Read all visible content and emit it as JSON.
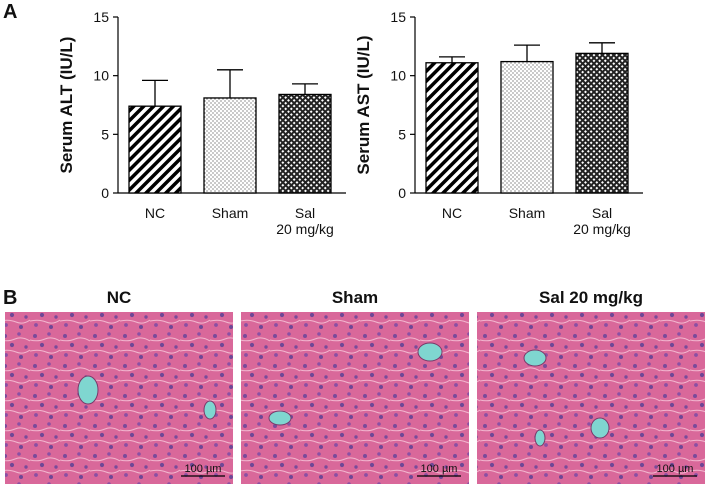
{
  "panels": {
    "a": "A",
    "b": "B"
  },
  "chart_data": [
    {
      "type": "bar",
      "ylabel": "Serum ALT (IU/L)",
      "categories": [
        "NC",
        "Sham",
        "Sal\n20 mg/kg"
      ],
      "values": [
        7.4,
        8.1,
        8.4
      ],
      "errors": [
        2.2,
        2.4,
        0.9
      ],
      "patterns": [
        "diagonal",
        "dots",
        "crosshatch"
      ],
      "color": "#000000",
      "ylim": [
        0,
        15
      ],
      "yticks": [
        0,
        5,
        10,
        15
      ]
    },
    {
      "type": "bar",
      "ylabel": "Serum AST (IU/L)",
      "categories": [
        "NC",
        "Sham",
        "Sal\n20 mg/kg"
      ],
      "values": [
        11.1,
        11.2,
        11.9
      ],
      "errors": [
        0.5,
        1.4,
        0.9
      ],
      "patterns": [
        "diagonal",
        "dots",
        "crosshatch"
      ],
      "color": "#000000",
      "ylim": [
        0,
        15
      ],
      "yticks": [
        0,
        5,
        10,
        15
      ]
    }
  ],
  "images": [
    {
      "title": "NC",
      "scale_bar": "100 µm"
    },
    {
      "title": "Sham",
      "scale_bar": "100 µm"
    },
    {
      "title": "Sal 20 mg/kg",
      "scale_bar": "100 µm"
    }
  ]
}
